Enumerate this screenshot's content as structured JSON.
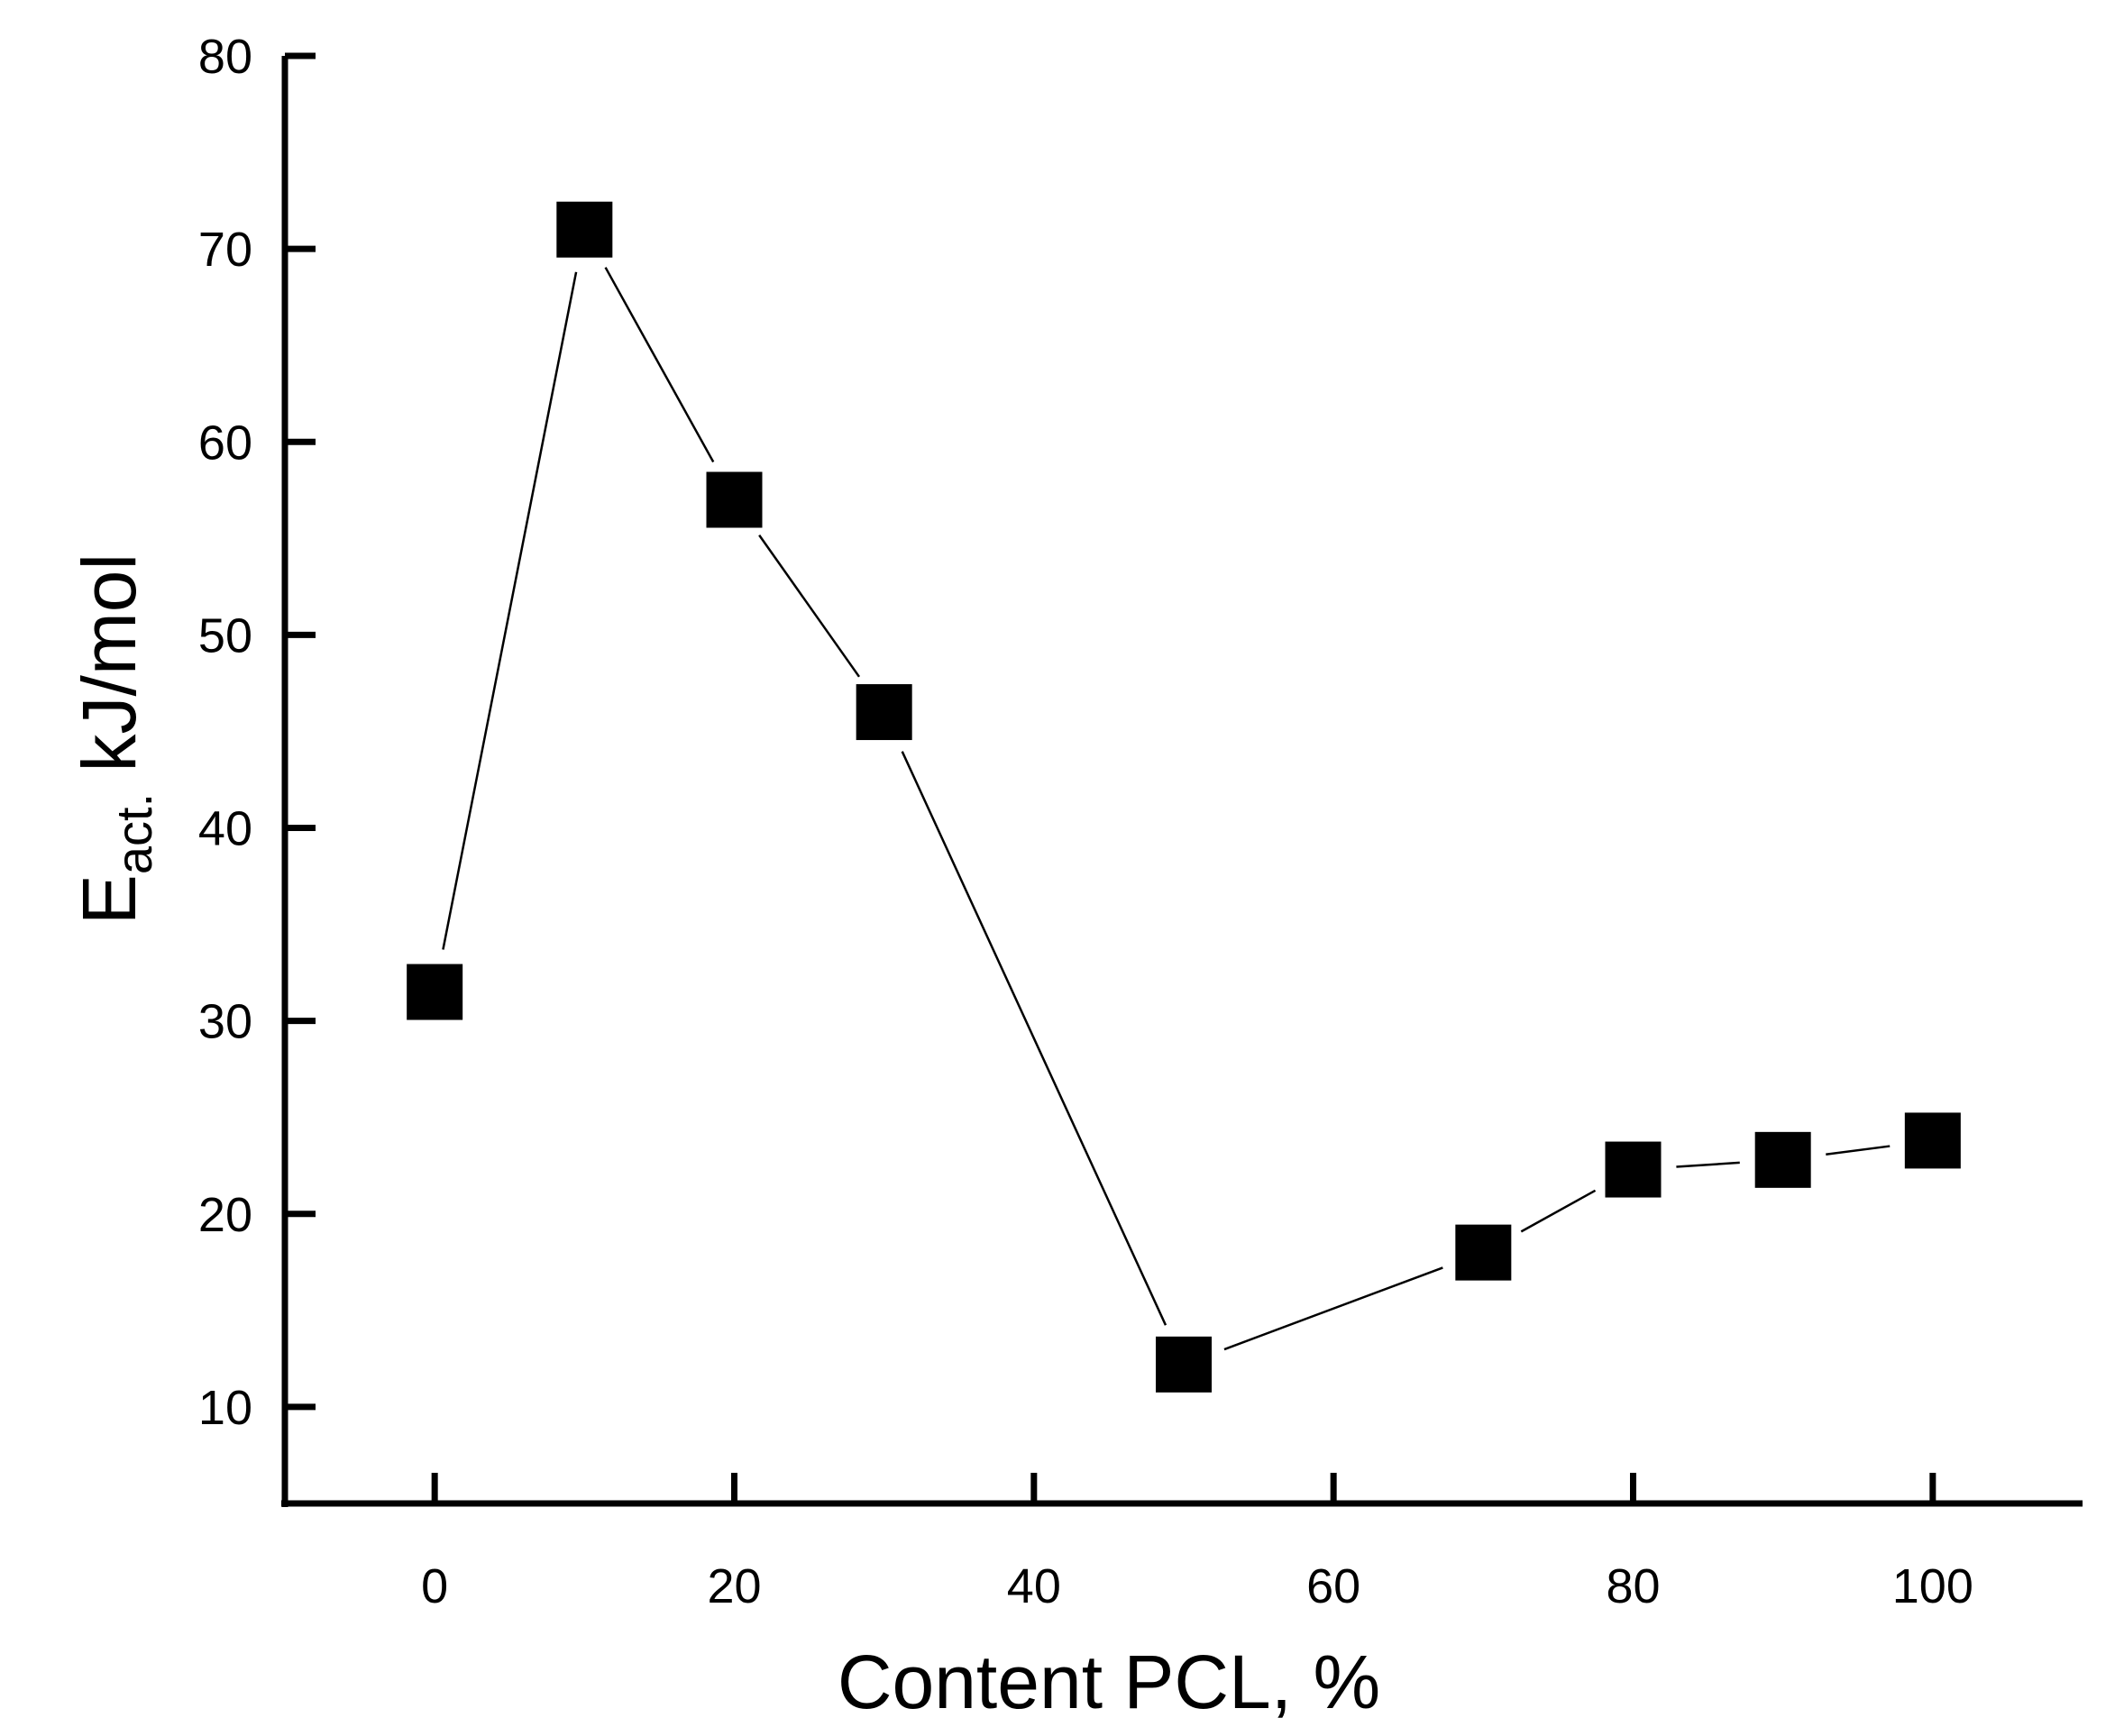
{
  "chart_data": {
    "type": "scatter",
    "title": "",
    "xlabel": "Content PCL, %",
    "ylabel": {
      "main": "E",
      "sub": "act.",
      "unit": " kJ/mol"
    },
    "xlim": [
      -10,
      110
    ],
    "ylim": [
      5,
      80
    ],
    "xticks": [
      0,
      20,
      40,
      60,
      80,
      100
    ],
    "yticks": [
      10,
      20,
      30,
      40,
      50,
      60,
      70,
      80
    ],
    "grid": false,
    "legend": "none",
    "marker": "filled-square",
    "connected": true,
    "series": [
      {
        "x": [
          0,
          10,
          20,
          30,
          50,
          70,
          80,
          90,
          100
        ],
        "y": [
          31.5,
          71,
          57,
          46,
          12.2,
          18,
          22.3,
          22.8,
          23.8
        ]
      }
    ],
    "colors": {
      "marker": "#000000",
      "line": "#000000",
      "axis": "#000000"
    }
  }
}
